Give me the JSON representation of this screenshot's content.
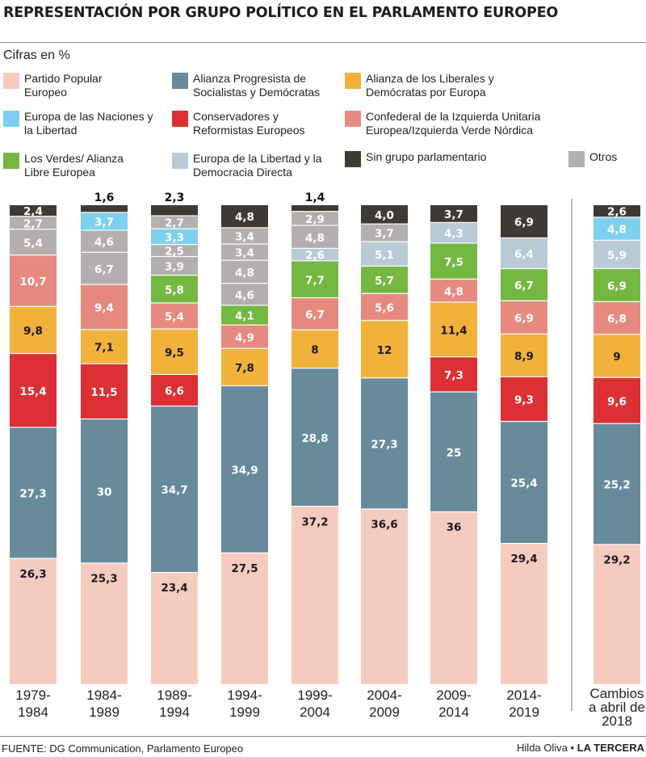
{
  "title": "REPRESENTACIÓN POR GRUPO POLÍTICO EN EL PARLAMENTO EUROPEO",
  "subtitle": "Cifras en %",
  "source": "FUENTE: DG Communication, Parlamento Europeo",
  "credit": {
    "author": "Hilda Oliva",
    "separator": "•",
    "brand": "LA TERCERA"
  },
  "colors": {
    "ppe": "#f6cbbf",
    "socialistas": "#678b9b",
    "liberales": "#f1b23c",
    "naciones": "#7dd1ee",
    "conservadores": "#dc3034",
    "izquierda": "#e68a80",
    "verdes": "#74b842",
    "libertad_democracia": "#b7cad6",
    "sin_grupo": "#3f3a35",
    "otros": "#b4afaf"
  },
  "legend": [
    {
      "key": "ppe",
      "label": "Partido Popular Europeo"
    },
    {
      "key": "socialistas",
      "label": "Alianza Progresista de Socialistas y Demócratas"
    },
    {
      "key": "liberales",
      "label": "Alianza de los Liberales y Demócratas por Europa"
    },
    {
      "key": "naciones",
      "label": "Europa de las Naciones y la Libertad"
    },
    {
      "key": "conservadores",
      "label": "Conservadores y Reformistas Europeos"
    },
    {
      "key": "izquierda",
      "label": "Confederal de la Izquierda Unitaria Europea/Izquierda Verde Nórdica"
    },
    {
      "key": "verdes",
      "label": "Los Verdes/ Alianza Libre Europea"
    },
    {
      "key": "libertad_democracia",
      "label": "Europa de la Libertad y la Democracia Directa"
    },
    {
      "key": "sin_grupo",
      "label": "Sin grupo parlamentario"
    },
    {
      "key": "otros",
      "label": "Otros"
    }
  ],
  "chart_data": {
    "type": "bar",
    "stacked": true,
    "unit": "%",
    "categories": [
      "1979-1984",
      "1984-1989",
      "1989-1994",
      "1994-1999",
      "1999-2004",
      "2004-2009",
      "2009-2014",
      "2014-2019",
      "Cambios a abril de 2018"
    ],
    "stacks": [
      [
        {
          "key": "ppe",
          "value": 26.3,
          "label": "26,3"
        },
        {
          "key": "socialistas",
          "value": 27.3,
          "label": "27,3"
        },
        {
          "key": "conservadores",
          "value": 15.4,
          "label": "15,4"
        },
        {
          "key": "liberales",
          "value": 9.8,
          "label": "9,8"
        },
        {
          "key": "izquierda",
          "value": 10.7,
          "label": "10,7"
        },
        {
          "key": "otros",
          "value": 5.4,
          "label": "5,4"
        },
        {
          "key": "otros",
          "value": 2.7,
          "label": "2,7"
        },
        {
          "key": "sin_grupo",
          "value": 2.4,
          "label": "2,4"
        }
      ],
      [
        {
          "key": "ppe",
          "value": 25.3,
          "label": "25,3"
        },
        {
          "key": "socialistas",
          "value": 30,
          "label": "30"
        },
        {
          "key": "conservadores",
          "value": 11.5,
          "label": "11,5"
        },
        {
          "key": "liberales",
          "value": 7.1,
          "label": "7,1"
        },
        {
          "key": "izquierda",
          "value": 9.4,
          "label": "9,4"
        },
        {
          "key": "otros",
          "value": 6.7,
          "label": "6,7"
        },
        {
          "key": "otros",
          "value": 4.6,
          "label": "4,6"
        },
        {
          "key": "naciones",
          "value": 3.7,
          "label": "3,7"
        },
        {
          "key": "sin_grupo",
          "value": 1.6,
          "label": "1,6",
          "outside": true
        }
      ],
      [
        {
          "key": "ppe",
          "value": 23.4,
          "label": "23,4"
        },
        {
          "key": "socialistas",
          "value": 34.7,
          "label": "34,7"
        },
        {
          "key": "conservadores",
          "value": 6.6,
          "label": "6,6"
        },
        {
          "key": "liberales",
          "value": 9.5,
          "label": "9,5"
        },
        {
          "key": "izquierda",
          "value": 5.4,
          "label": "5,4"
        },
        {
          "key": "verdes",
          "value": 5.8,
          "label": "5,8"
        },
        {
          "key": "otros",
          "value": 3.9,
          "label": "3,9"
        },
        {
          "key": "otros",
          "value": 2.5,
          "label": "2,5"
        },
        {
          "key": "naciones",
          "value": 3.3,
          "label": "3,3"
        },
        {
          "key": "otros",
          "value": 2.7,
          "label": "2,7"
        },
        {
          "key": "sin_grupo",
          "value": 2.3,
          "label": "2,3",
          "outside": true
        }
      ],
      [
        {
          "key": "ppe",
          "value": 27.5,
          "label": "27,5"
        },
        {
          "key": "socialistas",
          "value": 34.9,
          "label": "34,9"
        },
        {
          "key": "liberales",
          "value": 7.8,
          "label": "7,8"
        },
        {
          "key": "izquierda",
          "value": 4.9,
          "label": "4,9"
        },
        {
          "key": "verdes",
          "value": 4.1,
          "label": "4,1"
        },
        {
          "key": "otros",
          "value": 4.6,
          "label": "4,6"
        },
        {
          "key": "otros",
          "value": 4.8,
          "label": "4,8"
        },
        {
          "key": "otros",
          "value": 3.4,
          "label": "3,4"
        },
        {
          "key": "otros",
          "value": 3.4,
          "label": "3,4"
        },
        {
          "key": "sin_grupo",
          "value": 4.8,
          "label": "4,8"
        }
      ],
      [
        {
          "key": "ppe",
          "value": 37.2,
          "label": "37,2"
        },
        {
          "key": "socialistas",
          "value": 28.8,
          "label": "28,8"
        },
        {
          "key": "liberales",
          "value": 8,
          "label": "8"
        },
        {
          "key": "izquierda",
          "value": 6.7,
          "label": "6,7"
        },
        {
          "key": "verdes",
          "value": 7.7,
          "label": "7,7"
        },
        {
          "key": "libertad_democracia",
          "value": 2.6,
          "label": "2,6"
        },
        {
          "key": "otros",
          "value": 4.8,
          "label": "4,8"
        },
        {
          "key": "otros",
          "value": 2.9,
          "label": "2,9"
        },
        {
          "key": "sin_grupo",
          "value": 1.4,
          "label": "1,4",
          "outside": true
        }
      ],
      [
        {
          "key": "ppe",
          "value": 36.6,
          "label": "36,6"
        },
        {
          "key": "socialistas",
          "value": 27.3,
          "label": "27,3"
        },
        {
          "key": "liberales",
          "value": 12,
          "label": "12"
        },
        {
          "key": "izquierda",
          "value": 5.6,
          "label": "5,6"
        },
        {
          "key": "verdes",
          "value": 5.7,
          "label": "5,7"
        },
        {
          "key": "libertad_democracia",
          "value": 5.1,
          "label": "5,1"
        },
        {
          "key": "otros",
          "value": 3.7,
          "label": "3,7"
        },
        {
          "key": "sin_grupo",
          "value": 4.0,
          "label": "4,0"
        }
      ],
      [
        {
          "key": "ppe",
          "value": 36,
          "label": "36"
        },
        {
          "key": "socialistas",
          "value": 25,
          "label": "25"
        },
        {
          "key": "conservadores",
          "value": 7.3,
          "label": "7,3"
        },
        {
          "key": "liberales",
          "value": 11.4,
          "label": "11,4"
        },
        {
          "key": "izquierda",
          "value": 4.8,
          "label": "4,8"
        },
        {
          "key": "verdes",
          "value": 7.5,
          "label": "7,5"
        },
        {
          "key": "libertad_democracia",
          "value": 4.3,
          "label": "4,3"
        },
        {
          "key": "sin_grupo",
          "value": 3.7,
          "label": "3,7"
        }
      ],
      [
        {
          "key": "ppe",
          "value": 29.4,
          "label": "29,4"
        },
        {
          "key": "socialistas",
          "value": 25.4,
          "label": "25,4"
        },
        {
          "key": "conservadores",
          "value": 9.3,
          "label": "9,3"
        },
        {
          "key": "liberales",
          "value": 8.9,
          "label": "8,9"
        },
        {
          "key": "izquierda",
          "value": 6.9,
          "label": "6,9"
        },
        {
          "key": "verdes",
          "value": 6.7,
          "label": "6,7"
        },
        {
          "key": "libertad_democracia",
          "value": 6.4,
          "label": "6,4"
        },
        {
          "key": "sin_grupo",
          "value": 6.9,
          "label": "6,9"
        }
      ],
      [
        {
          "key": "ppe",
          "value": 29.2,
          "label": "29,2"
        },
        {
          "key": "socialistas",
          "value": 25.2,
          "label": "25,2"
        },
        {
          "key": "conservadores",
          "value": 9.6,
          "label": "9,6"
        },
        {
          "key": "liberales",
          "value": 9,
          "label": "9"
        },
        {
          "key": "izquierda",
          "value": 6.8,
          "label": "6,8"
        },
        {
          "key": "verdes",
          "value": 6.9,
          "label": "6,9"
        },
        {
          "key": "libertad_democracia",
          "value": 5.9,
          "label": "5,9"
        },
        {
          "key": "naciones",
          "value": 4.8,
          "label": "4,8"
        },
        {
          "key": "sin_grupo",
          "value": 2.6,
          "label": "2,6"
        }
      ]
    ]
  }
}
